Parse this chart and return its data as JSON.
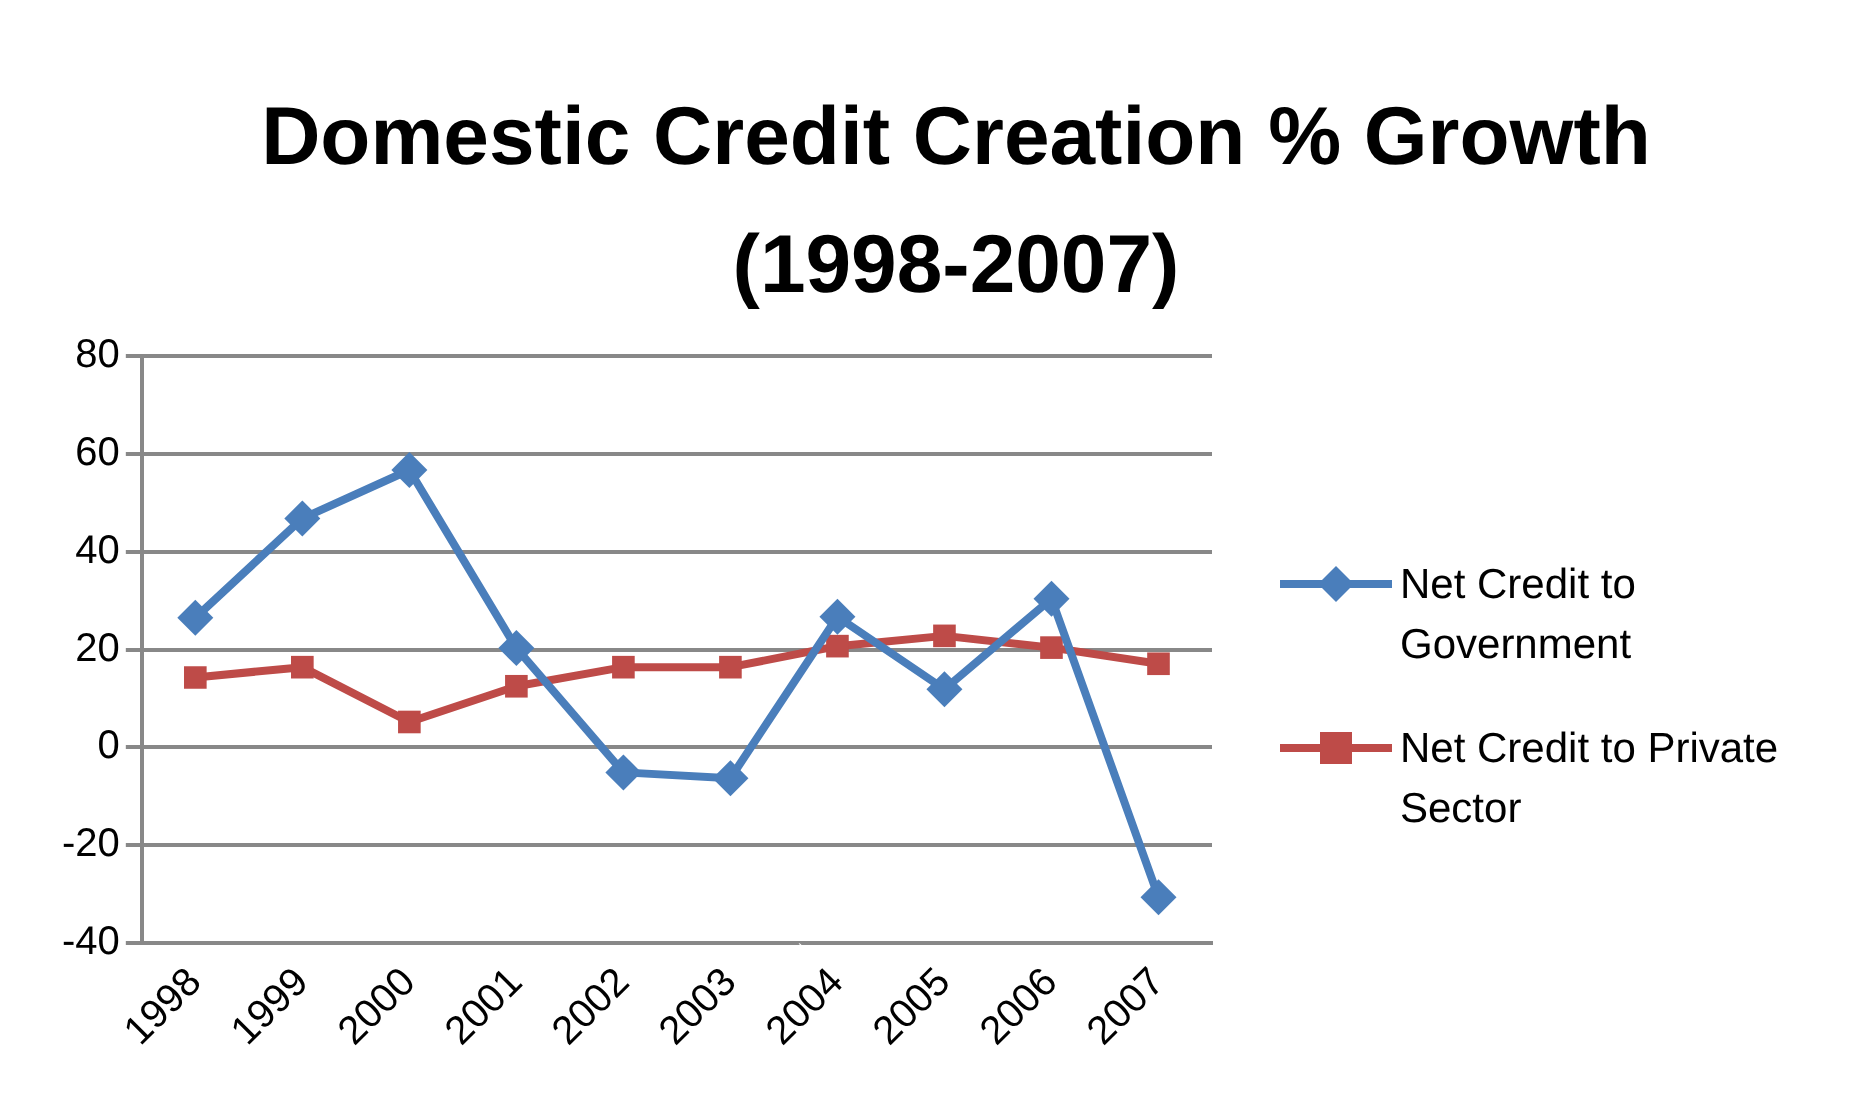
{
  "chart_data": {
    "type": "line",
    "title": "Domestic Credit Creation % Growth (1998-2007)",
    "categories": [
      "1998",
      "1999",
      "2000",
      "2001",
      "2002",
      "2003",
      "2004",
      "2005",
      "2006",
      "2007"
    ],
    "series": [
      {
        "name": "Net Credit to Government",
        "color": "#4a7ebb",
        "marker": "diamond",
        "values": [
          26.5,
          46.8,
          56.7,
          20.3,
          -5.1,
          -6.3,
          26.7,
          11.9,
          30.4,
          -30.6
        ]
      },
      {
        "name": "Net Credit to Private Sector",
        "color": "#be4b48",
        "marker": "square",
        "values": [
          14.3,
          16.4,
          5.2,
          12.5,
          16.4,
          16.4,
          20.7,
          22.8,
          20.4,
          17.1
        ]
      }
    ],
    "ylim": [
      -40,
      80
    ],
    "yticks": [
      -40,
      -20,
      0,
      20,
      40,
      60,
      80
    ],
    "grid": "y",
    "legend": "right",
    "line_style": "solid"
  }
}
